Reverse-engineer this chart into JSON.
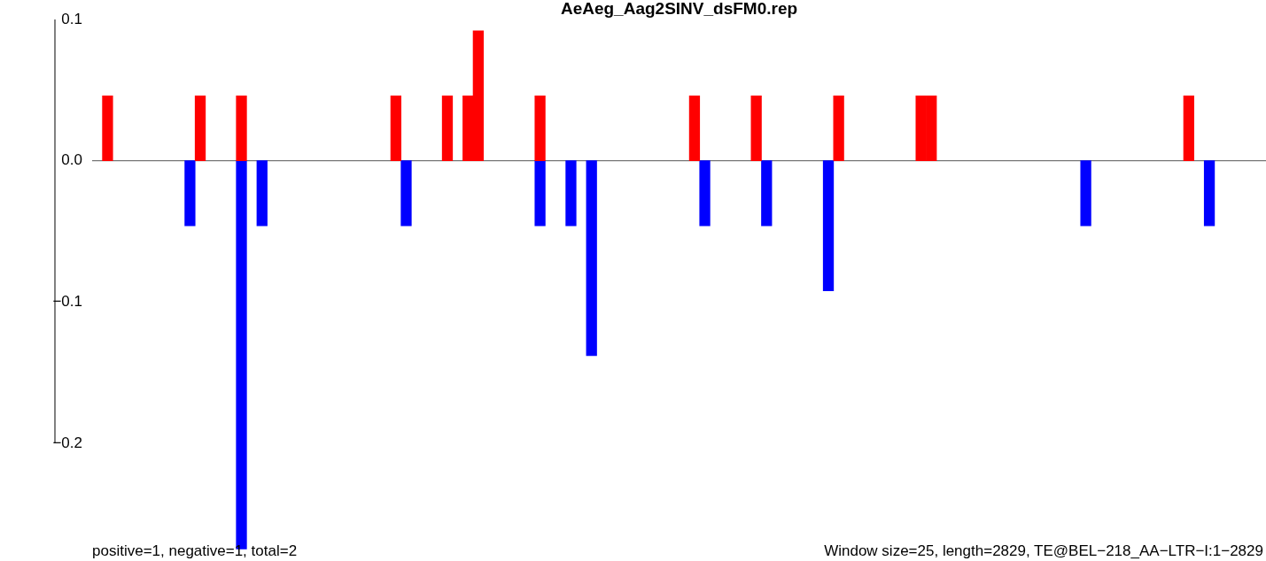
{
  "chart_data": {
    "type": "bar",
    "title": "AeAeg_Aag2SINV_dsFM0.rep",
    "stacked": true,
    "categories": [
      null,
      null,
      null,
      null,
      null,
      null,
      null,
      null,
      null,
      null,
      null,
      null,
      null,
      null,
      null,
      null,
      null,
      null,
      null,
      null,
      null,
      null,
      null,
      null,
      null,
      null,
      null,
      null,
      null,
      null,
      null,
      null,
      null,
      null,
      null,
      null,
      null,
      null,
      null,
      null,
      null,
      null,
      null,
      null,
      null,
      null,
      null,
      null,
      null,
      null,
      null,
      null,
      null,
      null,
      null,
      null,
      null,
      null,
      null,
      null,
      null,
      null,
      null,
      null,
      null,
      null,
      null,
      null,
      null,
      null,
      null,
      null,
      null,
      null,
      null,
      null,
      null,
      null,
      null,
      null,
      null,
      null,
      null,
      null,
      null,
      null,
      null,
      null,
      null,
      null,
      null,
      null,
      null,
      null,
      null,
      null,
      null,
      null,
      null,
      null,
      null,
      null,
      null,
      null,
      null,
      null,
      null,
      null,
      null,
      null,
      null,
      null,
      null,
      null
    ],
    "series": [
      {
        "color": "#ff0000",
        "values": [
          null,
          0.046,
          null,
          null,
          null,
          null,
          null,
          null,
          null,
          null,
          0.046,
          null,
          null,
          null,
          0.046,
          null,
          null,
          null,
          null,
          null,
          null,
          null,
          null,
          null,
          null,
          null,
          null,
          null,
          null,
          0.046,
          null,
          null,
          null,
          null,
          0.046,
          null,
          0.046,
          0.092,
          null,
          null,
          null,
          null,
          null,
          0.046,
          null,
          null,
          null,
          null,
          null,
          null,
          null,
          null,
          null,
          null,
          null,
          null,
          null,
          null,
          0.046,
          null,
          null,
          null,
          null,
          null,
          0.046,
          null,
          null,
          null,
          null,
          null,
          null,
          null,
          0.046,
          null,
          null,
          null,
          null,
          null,
          null,
          null,
          0.046,
          0.046,
          null,
          null,
          null,
          null,
          null,
          null,
          null,
          null,
          null,
          null,
          null,
          null,
          null,
          null,
          null,
          null,
          null,
          null,
          null,
          null,
          null,
          null,
          null,
          null,
          0.046,
          null,
          null,
          null,
          null,
          null,
          null,
          null
        ]
      },
      {
        "color": "#0000ff",
        "values": [
          null,
          null,
          null,
          null,
          null,
          null,
          null,
          null,
          null,
          -0.046,
          null,
          null,
          null,
          null,
          -0.275,
          null,
          -0.046,
          null,
          null,
          null,
          null,
          null,
          null,
          null,
          null,
          null,
          null,
          null,
          null,
          null,
          -0.046,
          null,
          null,
          null,
          null,
          null,
          null,
          null,
          null,
          null,
          null,
          null,
          null,
          -0.046,
          null,
          null,
          -0.046,
          null,
          -0.138,
          null,
          null,
          null,
          null,
          null,
          null,
          null,
          null,
          null,
          null,
          -0.046,
          null,
          null,
          null,
          null,
          null,
          -0.046,
          null,
          null,
          null,
          null,
          null,
          -0.092,
          null,
          null,
          null,
          null,
          null,
          null,
          null,
          null,
          null,
          null,
          null,
          null,
          null,
          null,
          null,
          null,
          null,
          null,
          null,
          null,
          null,
          null,
          null,
          null,
          -0.046,
          null,
          null,
          null,
          null,
          null,
          null,
          null,
          null,
          null,
          null,
          null,
          -0.046,
          null,
          null,
          null,
          null,
          null
        ]
      }
    ],
    "ylim": [
      -0.275,
      0.1
    ],
    "yticks": [
      {
        "value": -0.2,
        "label": "−0.2"
      },
      {
        "value": -0.1,
        "label": "−0.1"
      },
      {
        "value": 0,
        "label": "0.0"
      },
      0.1
    ],
    "grid": false,
    "legend": false,
    "tick_labels": "y",
    "ref_lines": [
      {
        "axis": "y",
        "value": 0,
        "color": "#555555"
      }
    ],
    "annotations": [
      "positive=1, negative=1, total=2",
      "Window size=25, length=2829, TE@BEL−218_AA−LTR−I:1−2829"
    ]
  }
}
